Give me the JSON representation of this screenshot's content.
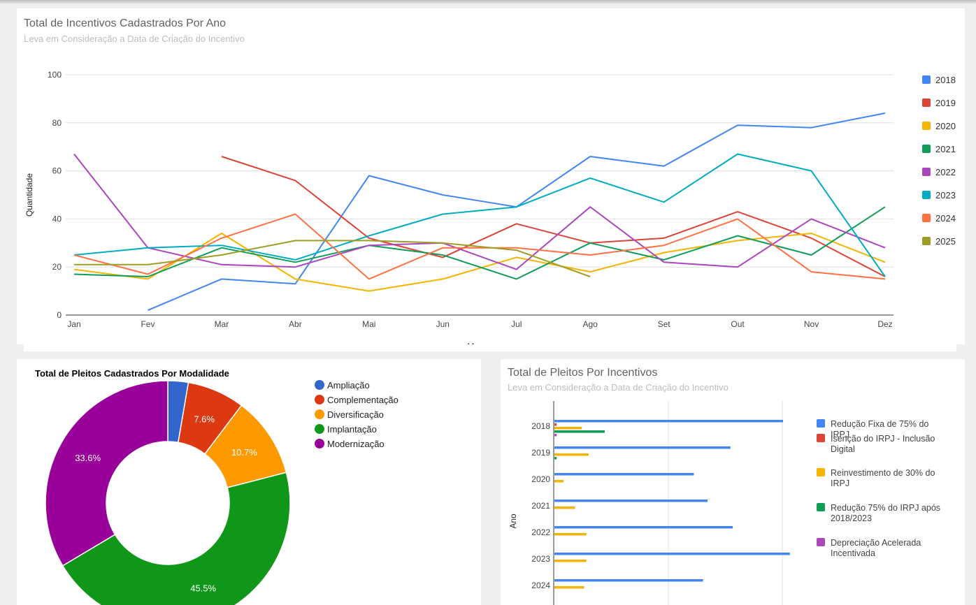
{
  "line_panel": {
    "title": "Total de Incentivos Cadastrados Por Ano",
    "subtitle": "Leva em Consideração a Data de Criação do Incentivo"
  },
  "pie_panel": {
    "title": "Total de Pleitos Cadastrados Por Modalidade"
  },
  "bar_panel": {
    "title": "Total de Pleitos Por Incentivos",
    "subtitle": "Leva em Consideração a Data de Criação do Incentivo"
  },
  "chart_data": [
    {
      "type": "line",
      "title": "Total de Incentivos Cadastrados Por Ano",
      "subtitle": "Leva em Consideração a Data de Criação do Incentivo",
      "xlabel": "Meses",
      "ylabel": "Quantidade",
      "categories": [
        "Jan",
        "Fev",
        "Mar",
        "Abr",
        "Mai",
        "Jun",
        "Jul",
        "Ago",
        "Set",
        "Out",
        "Nov",
        "Dez"
      ],
      "ylim": [
        0,
        100
      ],
      "yticks": [
        0,
        20,
        40,
        60,
        80,
        100
      ],
      "grid": true,
      "legend_position": "right",
      "series": [
        {
          "name": "2018",
          "color": "#4285f4",
          "values": [
            null,
            2,
            15,
            13,
            58,
            50,
            45,
            66,
            62,
            79,
            78,
            84
          ]
        },
        {
          "name": "2019",
          "color": "#db4437",
          "values": [
            null,
            null,
            66,
            56,
            32,
            24,
            38,
            30,
            32,
            43,
            32,
            16
          ]
        },
        {
          "name": "2020",
          "color": "#f4b400",
          "values": [
            19,
            15,
            34,
            15,
            10,
            15,
            24,
            18,
            26,
            31,
            34,
            22
          ]
        },
        {
          "name": "2021",
          "color": "#0f9d58",
          "values": [
            17,
            16,
            28,
            22,
            29,
            25,
            15,
            30,
            23,
            33,
            25,
            45
          ]
        },
        {
          "name": "2022",
          "color": "#ab47bc",
          "values": [
            67,
            28,
            21,
            20,
            29,
            30,
            19,
            45,
            22,
            20,
            40,
            28
          ]
        },
        {
          "name": "2023",
          "color": "#00acc1",
          "values": [
            25,
            28,
            29,
            23,
            33,
            42,
            45,
            57,
            47,
            67,
            60,
            16
          ]
        },
        {
          "name": "2024",
          "color": "#ff7043",
          "values": [
            25,
            17,
            32,
            42,
            15,
            28,
            28,
            25,
            29,
            40,
            18,
            15
          ]
        },
        {
          "name": "2025",
          "color": "#9e9d24",
          "values": [
            21,
            21,
            25,
            31,
            31,
            30,
            27,
            16,
            null,
            null,
            null,
            null
          ]
        }
      ]
    },
    {
      "type": "pie",
      "title": "Total de Pleitos Cadastrados Por Modalidade",
      "donut": true,
      "legend_position": "right",
      "labels": [
        "Ampliação",
        "Complementação",
        "Diversificação",
        "Implantação",
        "Modernização"
      ],
      "values": [
        2.7,
        7.6,
        10.7,
        45.5,
        33.6
      ],
      "value_labels": [
        "",
        "7.6%",
        "10.7%",
        "45.5%",
        "33.6%"
      ],
      "colors": [
        "#3366cc",
        "#dc3912",
        "#ff9900",
        "#109618",
        "#990099"
      ]
    },
    {
      "type": "bar",
      "orientation": "horizontal",
      "title": "Total de Pleitos Por Incentivos",
      "subtitle": "Leva em Consideração a Data de Criação do Incentivo",
      "ylabel": "Ano",
      "categories": [
        "2018",
        "2019",
        "2020",
        "2021",
        "2022",
        "2023",
        "2024"
      ],
      "legend_position": "right",
      "series": [
        {
          "name": "Redução Fixa de 75% do IRPJ",
          "color": "#4285f4",
          "values": [
            100,
            77,
            61,
            67,
            78,
            103,
            65
          ]
        },
        {
          "name": "Isenção do IRPJ - Inclusão Digital",
          "color": "#db4437",
          "values": [
            1,
            0,
            0,
            0,
            0,
            0,
            0
          ]
        },
        {
          "name": "Reinvestimento de 30% do IRPJ",
          "color": "#f4b400",
          "values": [
            12,
            15,
            4,
            9,
            14,
            14,
            13
          ]
        },
        {
          "name": "Redução 75% do IRPJ após 2018/2023",
          "color": "#0f9d58",
          "values": [
            22,
            1,
            0,
            0,
            0,
            0,
            0
          ]
        },
        {
          "name": "Depreciação Acelerada Incentivada",
          "color": "#ab47bc",
          "values": [
            1,
            0,
            0,
            0,
            0,
            0,
            0
          ]
        }
      ]
    }
  ]
}
